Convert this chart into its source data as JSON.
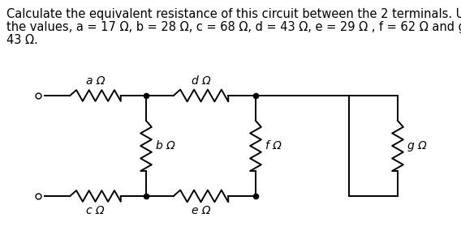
{
  "title_line1": "Calculate the equivalent resistance of this circuit between the 2 terminals. Use",
  "title_line2": "the values, a = 17 Ω, b = 28 Ω, c = 68 Ω, d = 43 Ω, e = 29 Ω , f = 62 Ω and g =",
  "title_line3": "43 Ω.",
  "title_fontsize": 10.5,
  "label_fontsize": 10,
  "labels": {
    "a": "a Ω",
    "b": "b Ω",
    "c": "c Ω",
    "d": "d Ω",
    "e": "e Ω",
    "f": "f Ω",
    "g": "g Ω"
  },
  "line_color": "#000000",
  "bg_color": "#ffffff",
  "lw": 1.4
}
